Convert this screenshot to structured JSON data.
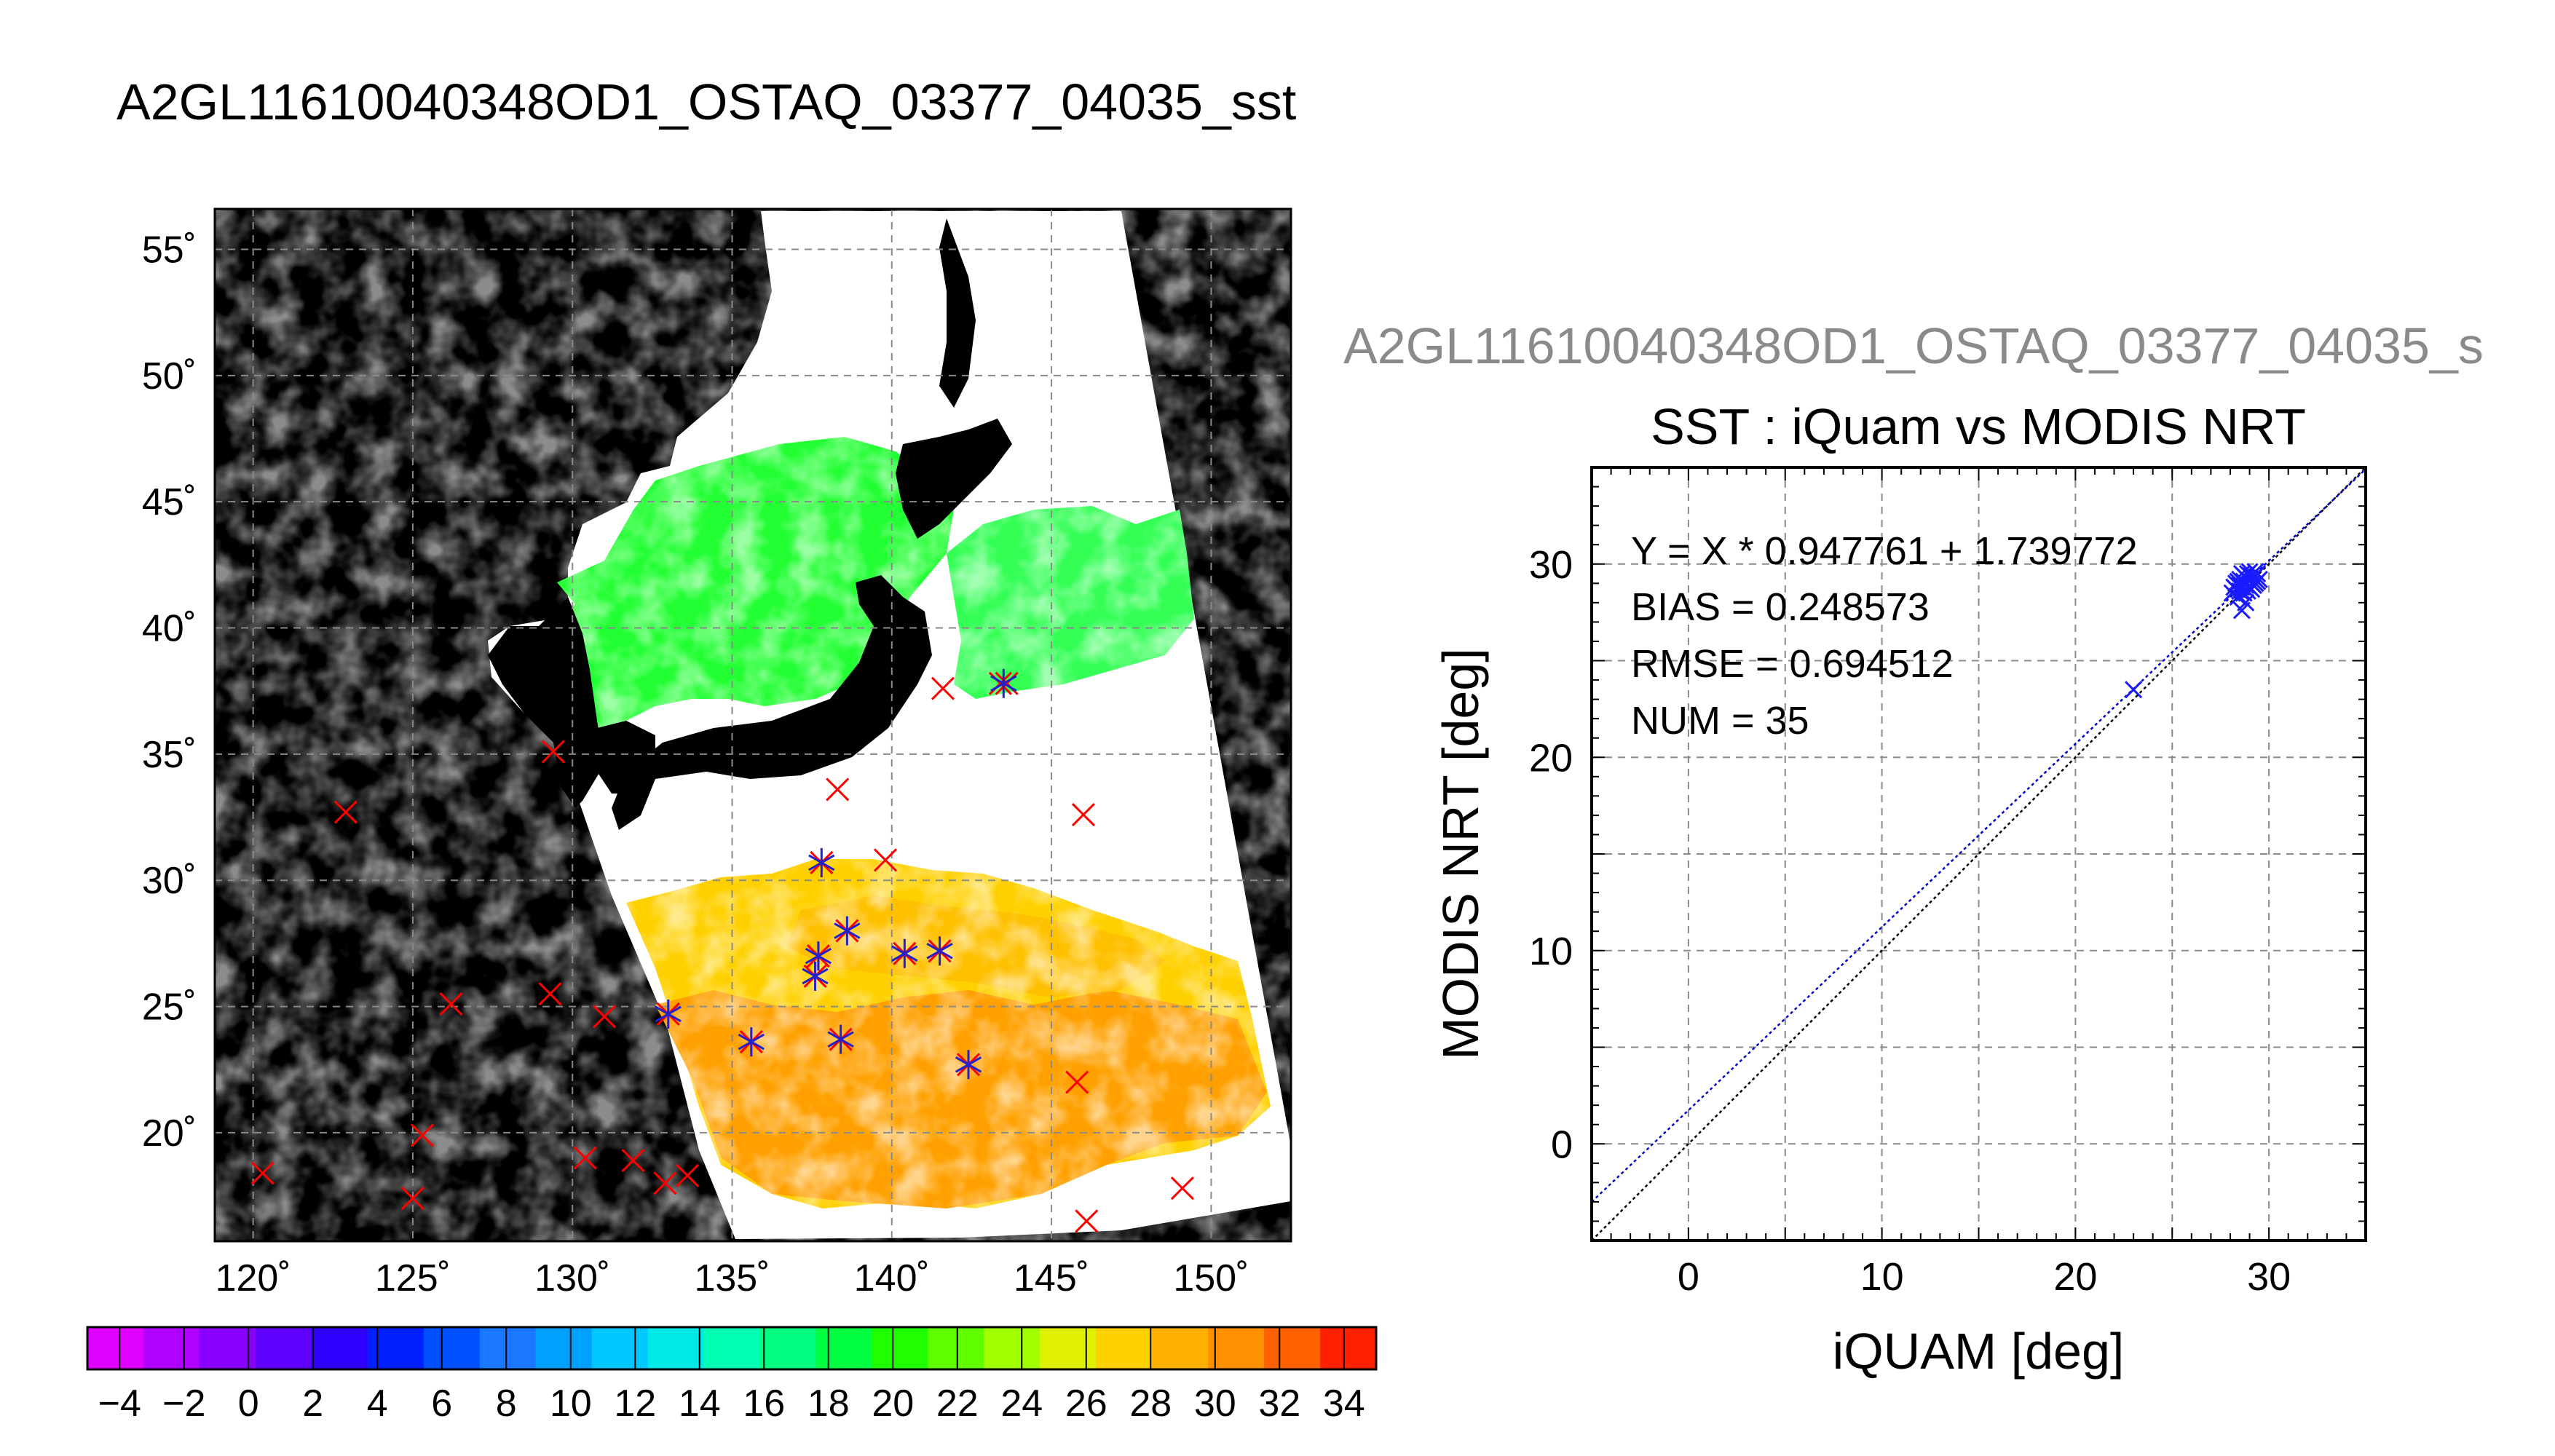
{
  "page": {
    "title": "A2GL11610040348OD1_OSTAQ_03377_04035_sst",
    "scatter_overlay_title": "A2GL11610040348OD1_OSTAQ_03377_04035_s"
  },
  "chart_data": [
    {
      "type": "map",
      "title": "A2GL11610040348OD1_OSTAQ_03377_04035_sst",
      "lon_range": [
        118.8,
        152.5
      ],
      "lat_range": [
        15.7,
        56.6
      ],
      "lon_ticks": [
        120,
        125,
        130,
        135,
        140,
        145,
        150
      ],
      "lat_ticks": [
        20,
        25,
        30,
        35,
        40,
        45,
        50,
        55
      ],
      "lon_tick_labels": [
        "120˚",
        "125˚",
        "130˚",
        "135˚",
        "140˚",
        "145˚",
        "150˚"
      ],
      "lat_tick_labels": [
        "20˚",
        "25˚",
        "30˚",
        "35˚",
        "40˚",
        "45˚",
        "50˚",
        "55˚"
      ],
      "grid": true,
      "colorbar": {
        "range": [
          -5,
          35
        ],
        "tick_labels": [
          "−4",
          "−2",
          "0",
          "2",
          "4",
          "6",
          "8",
          "10",
          "12",
          "14",
          "16",
          "18",
          "20",
          "22",
          "24",
          "26",
          "28",
          "30",
          "32",
          "34"
        ],
        "colors": [
          "#e000ff",
          "#b000ff",
          "#8a00ff",
          "#6000ff",
          "#2e00ff",
          "#0020ff",
          "#0050ff",
          "#1a78ff",
          "#00a0ff",
          "#00c8ff",
          "#00e8e8",
          "#00ffb0",
          "#00ff80",
          "#00ff40",
          "#20ff00",
          "#60ff00",
          "#a0ff00",
          "#e0f000",
          "#ffd000",
          "#ffb000",
          "#ff9000",
          "#ff6000",
          "#ff2000"
        ]
      },
      "matchups_red": [
        [
          120.3,
          18.4
        ],
        [
          122.9,
          32.7
        ],
        [
          125.0,
          17.4
        ],
        [
          125.3,
          19.9
        ],
        [
          126.2,
          25.1
        ],
        [
          129.3,
          25.5
        ],
        [
          129.4,
          35.1
        ],
        [
          130.4,
          19.0
        ],
        [
          131.0,
          24.6
        ],
        [
          131.9,
          18.9
        ],
        [
          132.9,
          18.0
        ],
        [
          133.0,
          24.7
        ],
        [
          133.6,
          18.3
        ],
        [
          135.6,
          23.6
        ],
        [
          137.6,
          26.2
        ],
        [
          137.7,
          27.0
        ],
        [
          137.8,
          30.7
        ],
        [
          138.3,
          33.6
        ],
        [
          138.4,
          23.7
        ],
        [
          138.6,
          28.0
        ],
        [
          139.8,
          30.8
        ],
        [
          140.4,
          27.1
        ],
        [
          141.5,
          27.2
        ],
        [
          141.6,
          37.6
        ],
        [
          142.4,
          22.7
        ],
        [
          143.4,
          37.8
        ],
        [
          143.6,
          37.8
        ],
        [
          145.8,
          22.0
        ],
        [
          146.0,
          32.6
        ],
        [
          146.1,
          16.5
        ],
        [
          149.1,
          17.8
        ]
      ],
      "matchups_blue": [
        [
          133.0,
          24.7
        ],
        [
          135.6,
          23.6
        ],
        [
          137.6,
          26.2
        ],
        [
          137.7,
          27.0
        ],
        [
          137.8,
          30.7
        ],
        [
          138.4,
          23.7
        ],
        [
          138.6,
          28.0
        ],
        [
          140.4,
          27.1
        ],
        [
          141.5,
          27.2
        ],
        [
          142.4,
          22.7
        ],
        [
          143.5,
          37.8
        ]
      ]
    },
    {
      "type": "scatter",
      "title": "SST : iQuam vs MODIS NRT",
      "xlabel": "iQUAM [deg]",
      "ylabel": "MODIS NRT [deg]",
      "xlim": [
        -5,
        35
      ],
      "ylim": [
        -5,
        35
      ],
      "x_ticks": [
        0,
        10,
        20,
        30
      ],
      "y_ticks": [
        0,
        10,
        20,
        30
      ],
      "grid": true,
      "stats": {
        "fit": "Y = X * 0.947761 + 1.739772",
        "bias": "BIAS = 0.248573",
        "rmse": "RMSE = 0.694512",
        "num": "NUM = 35"
      },
      "fit_line": {
        "slope": 0.947761,
        "intercept": 1.739772,
        "color": "#0000cc"
      },
      "identity_line": {
        "color": "#000000"
      },
      "points": [
        [
          23.0,
          23.5
        ],
        [
          28.1,
          28.5
        ],
        [
          28.3,
          29.0
        ],
        [
          28.4,
          28.3
        ],
        [
          28.5,
          29.2
        ],
        [
          28.6,
          28.8
        ],
        [
          28.6,
          27.6
        ],
        [
          28.7,
          29.4
        ],
        [
          28.8,
          28.9
        ],
        [
          28.8,
          28.0
        ],
        [
          28.9,
          29.5
        ],
        [
          29.0,
          29.1
        ],
        [
          29.1,
          28.7
        ],
        [
          29.2,
          29.3
        ],
        [
          29.3,
          29.0
        ],
        [
          29.4,
          29.5
        ],
        [
          29.5,
          29.2
        ],
        [
          28.2,
          28.8
        ],
        [
          28.4,
          29.1
        ],
        [
          28.6,
          29.5
        ],
        [
          28.7,
          28.5
        ],
        [
          28.9,
          28.6
        ],
        [
          29.0,
          29.6
        ],
        [
          29.1,
          29.4
        ],
        [
          29.2,
          28.9
        ],
        [
          29.3,
          29.6
        ],
        [
          29.4,
          29.1
        ],
        [
          28.5,
          28.6
        ],
        [
          28.8,
          29.3
        ],
        [
          29.0,
          28.8
        ],
        [
          28.3,
          28.7
        ],
        [
          28.9,
          29.2
        ],
        [
          29.1,
          29.0
        ],
        [
          28.7,
          29.1
        ],
        [
          28.5,
          28.9
        ]
      ]
    }
  ]
}
